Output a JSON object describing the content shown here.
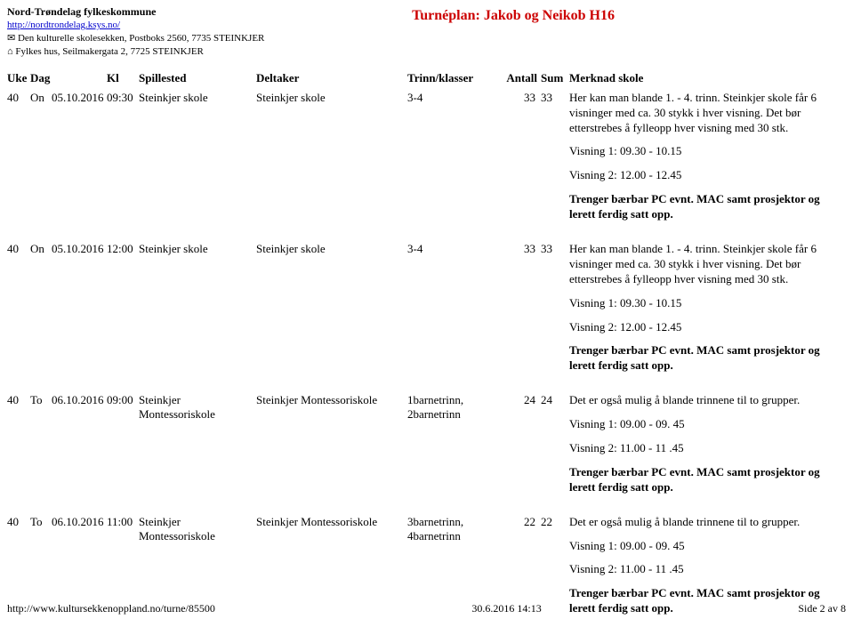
{
  "header": {
    "org": "Nord-Trøndelag fylkeskommune",
    "url": "http://nordtrondelag.ksys.no/",
    "line1": "✉ Den kulturelle skolesekken, Postboks 2560, 7735 STEINKJER",
    "line2": "⌂ Fylkes hus, Seilmakergata 2, 7725 STEINKJER",
    "title": "Turnéplan: Jakob og Neikob H16"
  },
  "columns": {
    "uke": "Uke",
    "dag": "Dag",
    "kl": "Kl",
    "spillested": "Spillested",
    "deltaker": "Deltaker",
    "trinn": "Trinn/klasser",
    "antall": "Antall",
    "sum": "Sum",
    "merknad": "Merknad skole"
  },
  "rows": [
    {
      "uke": "40",
      "dag": "On",
      "date": "05.10.2016",
      "kl": "09:30",
      "spillested": "Steinkjer skole",
      "deltaker": "Steinkjer skole",
      "trinn": "3-4",
      "antall": "33",
      "sum": "33",
      "merknad": {
        "p1": "Her kan man blande 1. - 4. trinn. Steinkjer skole får 6 visninger med ca. 30 stykk i hver visning. Det bør etterstrebes å fylleopp hver visning med 30 stk.",
        "p2": "Visning 1: 09.30 - 10.15",
        "p3": "Visning 2: 12.00 - 12.45",
        "p4": "Trenger bærbar PC evnt. MAC samt prosjektor og lerett ferdig satt opp."
      }
    },
    {
      "uke": "40",
      "dag": "On",
      "date": "05.10.2016",
      "kl": "12:00",
      "spillested": "Steinkjer skole",
      "deltaker": "Steinkjer skole",
      "trinn": "3-4",
      "antall": "33",
      "sum": "33",
      "merknad": {
        "p1": "Her kan man blande 1. - 4. trinn. Steinkjer skole får 6 visninger med ca. 30 stykk i hver visning. Det bør etterstrebes å fylleopp hver visning med 30 stk.",
        "p2": "Visning 1: 09.30 - 10.15",
        "p3": "Visning 2: 12.00 - 12.45",
        "p4": "Trenger bærbar PC evnt. MAC samt prosjektor og lerett ferdig satt opp."
      }
    },
    {
      "uke": "40",
      "dag": "To",
      "date": "06.10.2016",
      "kl": "09:00",
      "spillested": "Steinkjer Montessoriskole",
      "deltaker": "Steinkjer Montessoriskole",
      "trinn": "1barnetrinn, 2barnetrinn",
      "antall": "24",
      "sum": "24",
      "merknad": {
        "p1": "Det er også mulig å blande trinnene til to grupper.",
        "p2": "Visning 1: 09.00 - 09. 45",
        "p3": "Visning 2: 11.00 - 11 .45",
        "p4": "Trenger bærbar PC evnt. MAC samt prosjektor og lerett ferdig satt opp."
      }
    },
    {
      "uke": "40",
      "dag": "To",
      "date": "06.10.2016",
      "kl": "11:00",
      "spillested": "Steinkjer Montessoriskole",
      "deltaker": "Steinkjer Montessoriskole",
      "trinn": "3barnetrinn, 4barnetrinn",
      "antall": "22",
      "sum": "22",
      "merknad": {
        "p1": "Det er også mulig å blande trinnene til to grupper.",
        "p2": "Visning 1: 09.00 - 09. 45",
        "p3": "Visning 2: 11.00 - 11 .45",
        "p4": "Trenger bærbar PC evnt. MAC samt prosjektor og lerett ferdig satt opp."
      }
    }
  ],
  "footer": {
    "left": "http://www.kultursekkenoppland.no/turne/85500",
    "center": "30.6.2016 14:13",
    "right": "Side 2 av 8"
  }
}
